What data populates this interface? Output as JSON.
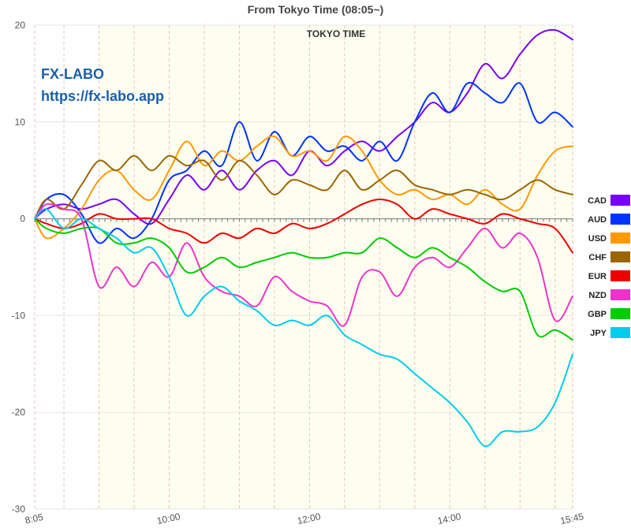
{
  "chart_data": {
    "type": "line",
    "title": "From Tokyo Time  (08:05~)",
    "session_label": "TOKYO TIME",
    "watermark": [
      "FX-LABO",
      "https://fx-labo.app"
    ],
    "xlabel": "",
    "ylabel": "",
    "x_start": "8:05",
    "x_end": "15:45",
    "x_ticks": [
      "8:05",
      "10:00",
      "12:00",
      "14:00",
      "15:45"
    ],
    "session_start": "9:00",
    "ylim": [
      -30,
      20
    ],
    "y_ticks": [
      20,
      10,
      0,
      -10,
      -20,
      -30
    ],
    "grid": true,
    "legend_position": "right",
    "series": [
      {
        "name": "CAD",
        "color": "#7700ff",
        "points": [
          [
            "8:05",
            0
          ],
          [
            "8:15",
            1
          ],
          [
            "8:30",
            1.5
          ],
          [
            "8:45",
            1
          ],
          [
            "9:00",
            1.5
          ],
          [
            "9:15",
            2
          ],
          [
            "9:30",
            0.5
          ],
          [
            "9:45",
            -0.5
          ],
          [
            "10:00",
            2
          ],
          [
            "10:15",
            4.5
          ],
          [
            "10:30",
            3
          ],
          [
            "10:45",
            5
          ],
          [
            "11:00",
            3
          ],
          [
            "11:15",
            5
          ],
          [
            "11:30",
            6
          ],
          [
            "11:45",
            4.5
          ],
          [
            "12:00",
            7
          ],
          [
            "12:15",
            5.5
          ],
          [
            "12:30",
            7
          ],
          [
            "12:45",
            8
          ],
          [
            "13:00",
            7
          ],
          [
            "13:15",
            8.5
          ],
          [
            "13:30",
            10
          ],
          [
            "13:45",
            12
          ],
          [
            "14:00",
            11
          ],
          [
            "14:15",
            13
          ],
          [
            "14:30",
            16
          ],
          [
            "14:45",
            14.5
          ],
          [
            "15:00",
            17
          ],
          [
            "15:15",
            19
          ],
          [
            "15:30",
            19.5
          ],
          [
            "15:45",
            18.5
          ]
        ]
      },
      {
        "name": "AUD",
        "color": "#0033ff",
        "points": [
          [
            "8:05",
            0
          ],
          [
            "8:15",
            2
          ],
          [
            "8:30",
            2.5
          ],
          [
            "8:45",
            0.5
          ],
          [
            "9:00",
            -2.5
          ],
          [
            "9:15",
            -1
          ],
          [
            "9:30",
            -2
          ],
          [
            "9:45",
            0
          ],
          [
            "10:00",
            4
          ],
          [
            "10:15",
            5
          ],
          [
            "10:30",
            7
          ],
          [
            "10:45",
            5.5
          ],
          [
            "11:00",
            10
          ],
          [
            "11:15",
            6
          ],
          [
            "11:30",
            9
          ],
          [
            "11:45",
            6.5
          ],
          [
            "12:00",
            8.5
          ],
          [
            "12:15",
            7
          ],
          [
            "12:30",
            7.5
          ],
          [
            "12:45",
            6
          ],
          [
            "13:00",
            8
          ],
          [
            "13:15",
            6
          ],
          [
            "13:30",
            10
          ],
          [
            "13:45",
            13
          ],
          [
            "14:00",
            11
          ],
          [
            "14:15",
            14
          ],
          [
            "14:30",
            13
          ],
          [
            "14:45",
            12
          ],
          [
            "15:00",
            14
          ],
          [
            "15:15",
            10
          ],
          [
            "15:30",
            11
          ],
          [
            "15:45",
            9.5
          ]
        ]
      },
      {
        "name": "USD",
        "color": "#ff9900",
        "points": [
          [
            "8:05",
            0
          ],
          [
            "8:15",
            -2
          ],
          [
            "8:30",
            -1
          ],
          [
            "8:45",
            1
          ],
          [
            "9:00",
            4
          ],
          [
            "9:15",
            5
          ],
          [
            "9:30",
            3
          ],
          [
            "9:45",
            2
          ],
          [
            "10:00",
            5
          ],
          [
            "10:15",
            8
          ],
          [
            "10:30",
            5.5
          ],
          [
            "10:45",
            7
          ],
          [
            "11:00",
            6
          ],
          [
            "11:15",
            7.5
          ],
          [
            "11:30",
            8.5
          ],
          [
            "11:45",
            6.5
          ],
          [
            "12:00",
            7
          ],
          [
            "12:15",
            6
          ],
          [
            "12:30",
            8.5
          ],
          [
            "12:45",
            7
          ],
          [
            "13:00",
            4
          ],
          [
            "13:15",
            2.5
          ],
          [
            "13:30",
            3
          ],
          [
            "13:45",
            2
          ],
          [
            "14:00",
            2.5
          ],
          [
            "14:15",
            1.5
          ],
          [
            "14:30",
            3
          ],
          [
            "14:45",
            1.5
          ],
          [
            "15:00",
            1
          ],
          [
            "15:15",
            4.5
          ],
          [
            "15:30",
            7
          ],
          [
            "15:45",
            7.5
          ]
        ]
      },
      {
        "name": "CHF",
        "color": "#996600",
        "points": [
          [
            "8:05",
            0
          ],
          [
            "8:15",
            2
          ],
          [
            "8:30",
            1
          ],
          [
            "8:45",
            3.5
          ],
          [
            "9:00",
            6
          ],
          [
            "9:15",
            5
          ],
          [
            "9:30",
            6.5
          ],
          [
            "9:45",
            5
          ],
          [
            "10:00",
            6.5
          ],
          [
            "10:15",
            5.5
          ],
          [
            "10:30",
            6
          ],
          [
            "10:45",
            4
          ],
          [
            "11:00",
            6
          ],
          [
            "11:15",
            4.5
          ],
          [
            "11:30",
            2.5
          ],
          [
            "11:45",
            4
          ],
          [
            "12:00",
            3.5
          ],
          [
            "12:15",
            3
          ],
          [
            "12:30",
            5
          ],
          [
            "12:45",
            3
          ],
          [
            "13:00",
            4
          ],
          [
            "13:15",
            5
          ],
          [
            "13:30",
            3.5
          ],
          [
            "13:45",
            3
          ],
          [
            "14:00",
            2.5
          ],
          [
            "14:15",
            3
          ],
          [
            "14:30",
            2.5
          ],
          [
            "14:45",
            2
          ],
          [
            "15:00",
            3
          ],
          [
            "15:15",
            4
          ],
          [
            "15:30",
            3
          ],
          [
            "15:45",
            2.5
          ]
        ]
      },
      {
        "name": "EUR",
        "color": "#ee0000",
        "points": [
          [
            "8:05",
            0
          ],
          [
            "8:15",
            -0.5
          ],
          [
            "8:30",
            -1
          ],
          [
            "8:45",
            -0.5
          ],
          [
            "9:00",
            0.5
          ],
          [
            "9:15",
            0
          ],
          [
            "9:30",
            0
          ],
          [
            "9:45",
            0
          ],
          [
            "10:00",
            -1
          ],
          [
            "10:15",
            -1.5
          ],
          [
            "10:30",
            -2.5
          ],
          [
            "10:45",
            -1.5
          ],
          [
            "11:00",
            -2
          ],
          [
            "11:15",
            -1
          ],
          [
            "11:30",
            -1.5
          ],
          [
            "11:45",
            -0.5
          ],
          [
            "12:00",
            -1
          ],
          [
            "12:15",
            -0.5
          ],
          [
            "12:30",
            0.5
          ],
          [
            "12:45",
            1.5
          ],
          [
            "13:00",
            2
          ],
          [
            "13:15",
            1.5
          ],
          [
            "13:30",
            0
          ],
          [
            "13:45",
            1
          ],
          [
            "14:00",
            0.5
          ],
          [
            "14:15",
            0
          ],
          [
            "14:30",
            -0.5
          ],
          [
            "14:45",
            0.5
          ],
          [
            "15:00",
            0
          ],
          [
            "15:15",
            -0.5
          ],
          [
            "15:30",
            -1
          ],
          [
            "15:45",
            -3.5
          ]
        ]
      },
      {
        "name": "NZD",
        "color": "#ee33cc",
        "points": [
          [
            "8:05",
            0
          ],
          [
            "8:15",
            1.5
          ],
          [
            "8:30",
            1
          ],
          [
            "8:45",
            0
          ],
          [
            "9:00",
            -7
          ],
          [
            "9:15",
            -5
          ],
          [
            "9:30",
            -7
          ],
          [
            "9:45",
            -4.5
          ],
          [
            "10:00",
            -6
          ],
          [
            "10:15",
            -2.5
          ],
          [
            "10:30",
            -6
          ],
          [
            "10:45",
            -7.5
          ],
          [
            "11:00",
            -8
          ],
          [
            "11:15",
            -9
          ],
          [
            "11:30",
            -6
          ],
          [
            "11:45",
            -7.5
          ],
          [
            "12:00",
            -8.5
          ],
          [
            "12:15",
            -9
          ],
          [
            "12:30",
            -11
          ],
          [
            "12:45",
            -6
          ],
          [
            "13:00",
            -5.5
          ],
          [
            "13:15",
            -8
          ],
          [
            "13:30",
            -5
          ],
          [
            "13:45",
            -4
          ],
          [
            "14:00",
            -5
          ],
          [
            "14:15",
            -3
          ],
          [
            "14:30",
            -1
          ],
          [
            "14:45",
            -3
          ],
          [
            "15:00",
            -1.5
          ],
          [
            "15:15",
            -4
          ],
          [
            "15:30",
            -10.5
          ],
          [
            "15:45",
            -8
          ]
        ]
      },
      {
        "name": "GBP",
        "color": "#00cc00",
        "points": [
          [
            "8:05",
            0
          ],
          [
            "8:15",
            -1
          ],
          [
            "8:30",
            -1.5
          ],
          [
            "8:45",
            -1
          ],
          [
            "9:00",
            -1
          ],
          [
            "9:15",
            -2.5
          ],
          [
            "9:30",
            -2.5
          ],
          [
            "9:45",
            -2
          ],
          [
            "10:00",
            -3
          ],
          [
            "10:15",
            -5.5
          ],
          [
            "10:30",
            -5
          ],
          [
            "10:45",
            -4
          ],
          [
            "11:00",
            -5
          ],
          [
            "11:15",
            -4.5
          ],
          [
            "11:30",
            -4
          ],
          [
            "11:45",
            -3.5
          ],
          [
            "12:00",
            -4
          ],
          [
            "12:15",
            -4
          ],
          [
            "12:30",
            -3.5
          ],
          [
            "12:45",
            -3.5
          ],
          [
            "13:00",
            -2
          ],
          [
            "13:15",
            -3
          ],
          [
            "13:30",
            -4
          ],
          [
            "13:45",
            -3
          ],
          [
            "14:00",
            -4
          ],
          [
            "14:15",
            -5
          ],
          [
            "14:30",
            -6.5
          ],
          [
            "14:45",
            -7.5
          ],
          [
            "15:00",
            -7.5
          ],
          [
            "15:15",
            -12
          ],
          [
            "15:30",
            -11.5
          ],
          [
            "15:45",
            -12.5
          ]
        ]
      },
      {
        "name": "JPY",
        "color": "#00ccee",
        "points": [
          [
            "8:05",
            0
          ],
          [
            "8:15",
            1
          ],
          [
            "8:30",
            -1
          ],
          [
            "8:45",
            0
          ],
          [
            "9:00",
            -1
          ],
          [
            "9:15",
            -2
          ],
          [
            "9:30",
            -3.5
          ],
          [
            "9:45",
            -3
          ],
          [
            "10:00",
            -6
          ],
          [
            "10:15",
            -10
          ],
          [
            "10:30",
            -8
          ],
          [
            "10:45",
            -7
          ],
          [
            "11:00",
            -8.5
          ],
          [
            "11:15",
            -9.5
          ],
          [
            "11:30",
            -11
          ],
          [
            "11:45",
            -10.5
          ],
          [
            "12:00",
            -11
          ],
          [
            "12:15",
            -10
          ],
          [
            "12:30",
            -12
          ],
          [
            "12:45",
            -13
          ],
          [
            "13:00",
            -14
          ],
          [
            "13:15",
            -14.5
          ],
          [
            "13:30",
            -16
          ],
          [
            "13:45",
            -17.5
          ],
          [
            "14:00",
            -19
          ],
          [
            "14:15",
            -21
          ],
          [
            "14:30",
            -23.5
          ],
          [
            "14:45",
            -22
          ],
          [
            "15:00",
            -22
          ],
          [
            "15:15",
            -21.5
          ],
          [
            "15:30",
            -19
          ],
          [
            "15:45",
            -14
          ]
        ]
      }
    ]
  }
}
